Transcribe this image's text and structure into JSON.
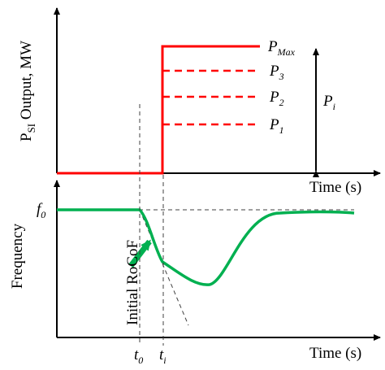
{
  "top_panel": {
    "ylabel_main": "P",
    "ylabel_sub": "SI",
    "ylabel_rest": " Output, MW",
    "xlabel": "Time (s)",
    "levels": [
      {
        "main": "P",
        "sub": "Max",
        "style": "solid"
      },
      {
        "main": "P",
        "sub": "3",
        "style": "dashed"
      },
      {
        "main": "P",
        "sub": "2",
        "style": "dashed"
      },
      {
        "main": "P",
        "sub": "1",
        "style": "dashed"
      }
    ],
    "range_label_main": "P",
    "range_label_sub": "i"
  },
  "bottom_panel": {
    "ylabel": "Frequency",
    "xlabel": "Time (s)",
    "f0_main": "f",
    "f0_sub": "0",
    "annotation": "Initial RoCoF",
    "t0_main": "t",
    "t0_sub": "0",
    "ti_main": "t",
    "ti_sub": "i"
  },
  "colors": {
    "power_curve": "#ff0000",
    "frequency_curve": "#00b050",
    "axes": "#000000",
    "guides": "#404040"
  }
}
